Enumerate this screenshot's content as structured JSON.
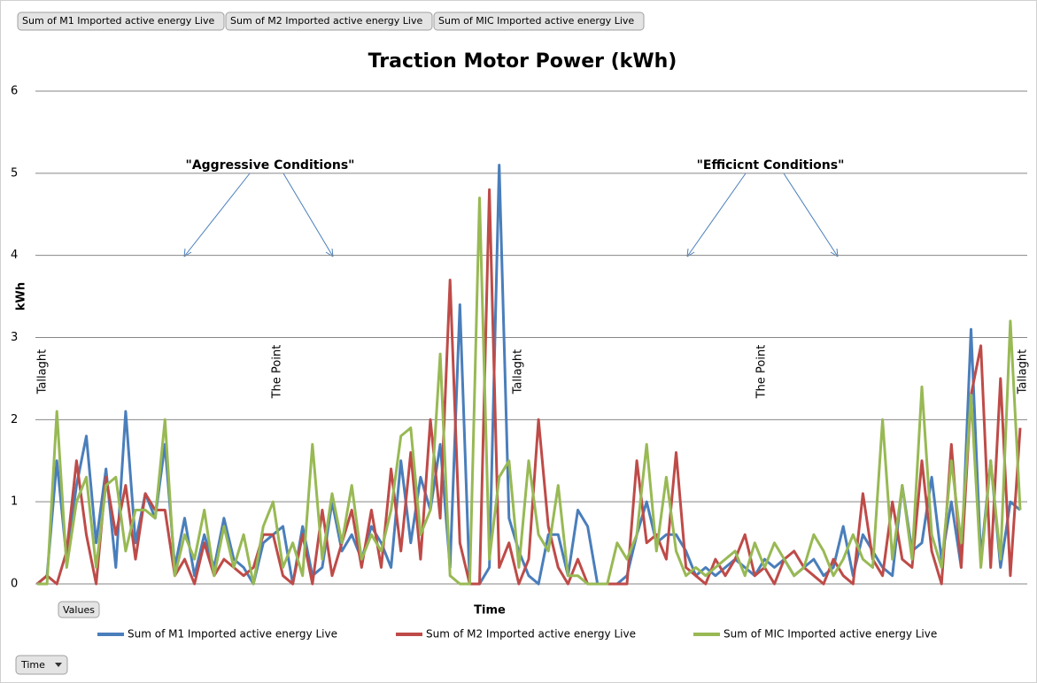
{
  "chart_data": {
    "type": "line",
    "title": "Traction Motor Power (kWh)",
    "x_label": "Time",
    "y_label": "kWh",
    "values_button": "Values",
    "ylim": [
      0,
      6
    ],
    "yticks": [
      0,
      1,
      2,
      3,
      4,
      5,
      6
    ],
    "grid": true,
    "legend": "bottom",
    "annotations": [
      "\"Aggressive Conditions\"",
      "\"Efficicnt Conditions\""
    ],
    "locations": [
      "Tallaght",
      "The Point",
      "Tallaght",
      "The Point",
      "Tallaght"
    ],
    "series": [
      {
        "name": "Sum of M1 Imported active energy Live",
        "color": "#4a7ebb",
        "values": [
          0,
          0.1,
          1.5,
          0.3,
          1.2,
          1.8,
          0.5,
          1.4,
          0.2,
          2.1,
          0.5,
          1.1,
          0.8,
          1.7,
          0.2,
          0.8,
          0.1,
          0.6,
          0.2,
          0.8,
          0.3,
          0.2,
          0,
          0.5,
          0.6,
          0.7,
          0,
          0.7,
          0.1,
          0.2,
          1.0,
          0.4,
          0.6,
          0.3,
          0.7,
          0.5,
          0.2,
          1.5,
          0.5,
          1.3,
          0.9,
          1.7,
          0.2,
          3.4,
          0,
          0,
          0.2,
          5.1,
          0.8,
          0.4,
          0.1,
          0,
          0.6,
          0.6,
          0.1,
          0.9,
          0.7,
          0,
          0,
          0,
          0.1,
          0.6,
          1.0,
          0.5,
          0.6,
          0.6,
          0.4,
          0.1,
          0.2,
          0.1,
          0.2,
          0.3,
          0.2,
          0.1,
          0.3,
          0.2,
          0.3,
          0.1,
          0.2,
          0.3,
          0.1,
          0.2,
          0.7,
          0.1,
          0.6,
          0.4,
          0.2,
          0.1,
          1.2,
          0.4,
          0.5,
          1.3,
          0.3,
          1.0,
          0.2,
          3.1,
          0.3,
          1.5,
          0.2,
          1.0,
          0.9
        ]
      },
      {
        "name": "Sum of M2 Imported active energy Live",
        "color": "#be4b48",
        "values": [
          0,
          0.1,
          0,
          0.4,
          1.5,
          0.6,
          0,
          1.3,
          0.6,
          1.2,
          0.3,
          1.1,
          0.9,
          0.9,
          0.1,
          0.3,
          0,
          0.5,
          0.1,
          0.3,
          0.2,
          0.1,
          0.2,
          0.6,
          0.6,
          0.1,
          0,
          0.6,
          0,
          0.9,
          0.1,
          0.5,
          0.9,
          0.2,
          0.9,
          0.2,
          1.4,
          0.4,
          1.6,
          0.3,
          2.0,
          0.8,
          3.7,
          0.5,
          0,
          0,
          4.8,
          0.2,
          0.5,
          0,
          0.3,
          2.0,
          0.7,
          0.2,
          0,
          0.3,
          0,
          0,
          0,
          0,
          0,
          1.5,
          0.5,
          0.6,
          0.3,
          1.6,
          0.2,
          0.1,
          0,
          0.3,
          0.1,
          0.3,
          0.6,
          0.1,
          0.2,
          0,
          0.3,
          0.4,
          0.2,
          0.1,
          0,
          0.3,
          0.1,
          0,
          1.1,
          0.3,
          0.1,
          1.0,
          0.3,
          0.2,
          1.5,
          0.4,
          0,
          1.7,
          0.2,
          2.3,
          2.9,
          0.2,
          2.5,
          0.1,
          1.9
        ]
      },
      {
        "name": "Sum of MIC Imported active energy Live",
        "color": "#98b954",
        "values": [
          0,
          0,
          2.1,
          0.2,
          1.0,
          1.3,
          0.2,
          1.2,
          1.3,
          0.4,
          0.9,
          0.9,
          0.8,
          2.0,
          0.1,
          0.6,
          0.3,
          0.9,
          0.1,
          0.7,
          0.2,
          0.6,
          0,
          0.7,
          1.0,
          0.2,
          0.5,
          0.1,
          1.7,
          0.3,
          1.1,
          0.5,
          1.2,
          0.3,
          0.6,
          0.4,
          0.9,
          1.8,
          1.9,
          0.6,
          0.9,
          2.8,
          0.1,
          0,
          0,
          4.7,
          0.3,
          1.3,
          1.5,
          0.2,
          1.5,
          0.6,
          0.4,
          1.2,
          0.1,
          0.1,
          0,
          0,
          0,
          0.5,
          0.3,
          0.6,
          1.7,
          0.4,
          1.3,
          0.4,
          0.1,
          0.2,
          0.1,
          0.2,
          0.3,
          0.4,
          0.1,
          0.5,
          0.2,
          0.5,
          0.3,
          0.1,
          0.2,
          0.6,
          0.4,
          0.1,
          0.3,
          0.6,
          0.3,
          0.2,
          2.0,
          0.3,
          1.2,
          0.3,
          2.4,
          0.6,
          0.2,
          1.5,
          0.5,
          2.3,
          0.2,
          1.5,
          0.3,
          3.2,
          0.9
        ]
      }
    ]
  }
}
